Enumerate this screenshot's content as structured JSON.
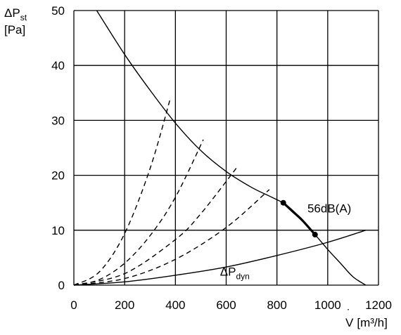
{
  "chart_data": {
    "type": "line",
    "xlim": [
      0,
      1200
    ],
    "ylim": [
      0,
      50
    ],
    "x_ticks": [
      "0",
      "200",
      "400",
      "600",
      "800",
      "1000",
      "1200"
    ],
    "y_ticks": [
      "0",
      "10",
      "20",
      "30",
      "40",
      "50"
    ],
    "grid": true,
    "y_axis_label": {
      "symbol": "ΔP",
      "subscript": "st",
      "unit": "[Pa]"
    },
    "x_axis_label": {
      "symbol": "V",
      "symbol_accent": "˙",
      "unit": "[m³/h]"
    },
    "series": [
      {
        "style": "solid",
        "x": [
          90,
          200,
          300,
          400,
          500,
          600,
          700,
          780,
          830,
          880,
          950,
          1000,
          1050,
          1100,
          1150
        ],
        "y": [
          50,
          42,
          35.5,
          29.5,
          24.5,
          20.7,
          17.8,
          16,
          14.8,
          12.8,
          9.2,
          6.5,
          4,
          1.5,
          0
        ]
      },
      {
        "name": "56dB(A)",
        "style": "bold",
        "x": [
          825,
          860,
          900,
          950
        ],
        "y": [
          15,
          13.5,
          11.8,
          9.2
        ]
      },
      {
        "name": "ΔP_dyn",
        "style": "solid",
        "x": [
          0,
          200,
          400,
          600,
          800,
          1000,
          1150
        ],
        "y": [
          0,
          0.6,
          1.8,
          3.3,
          5.4,
          7.8,
          10
        ]
      },
      {
        "style": "dashed",
        "x": [
          0,
          100,
          200,
          300,
          380
        ],
        "y": [
          0,
          2.4,
          9.4,
          21.2,
          34
        ]
      },
      {
        "style": "dashed",
        "x": [
          0,
          100,
          200,
          300,
          400,
          510
        ],
        "y": [
          0,
          1,
          4,
          9,
          16,
          26.5
        ]
      },
      {
        "style": "dashed",
        "x": [
          0,
          200,
          400,
          500,
          640
        ],
        "y": [
          0,
          2.1,
          8.3,
          13,
          21.3
        ]
      },
      {
        "style": "dashed",
        "x": [
          0,
          200,
          400,
          600,
          770
        ],
        "y": [
          0,
          1.2,
          4.7,
          10.5,
          17.4
        ]
      }
    ],
    "markers": [
      {
        "x": 825,
        "y": 15
      },
      {
        "x": 950,
        "y": 9.2
      }
    ],
    "annotations": [
      {
        "text": "56dB(A)",
        "x": 920,
        "y": 14
      },
      {
        "text": "ΔP",
        "subscript": "dyn",
        "x": 720,
        "y": 2.5
      }
    ]
  }
}
